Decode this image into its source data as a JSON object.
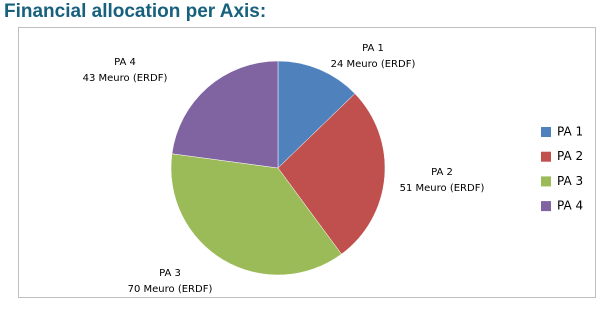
{
  "chart_data": {
    "type": "pie",
    "title": "Financial allocation per Axis:",
    "categories": [
      "PA 1",
      "PA 2",
      "PA 3",
      "PA 4"
    ],
    "values": [
      24,
      51,
      70,
      43
    ],
    "value_labels": [
      "24 Meuro (ERDF)",
      "51 Meuro (ERDF)",
      "70 Meuro (ERDF)",
      "43 Meuro (ERDF)"
    ],
    "colors": [
      "#4f81bd",
      "#c0504d",
      "#9bbb59",
      "#8064a2"
    ],
    "legend": "right"
  }
}
